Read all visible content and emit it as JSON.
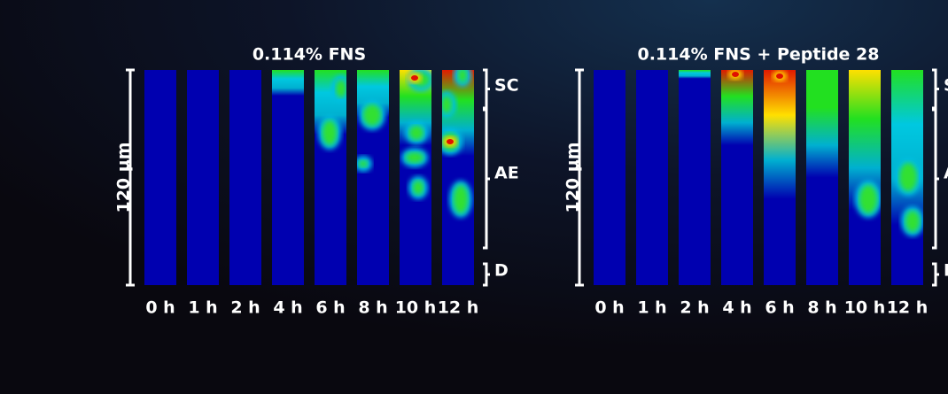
{
  "panels": [
    {
      "title": "0.114% FNS",
      "scale_label": "120 µm",
      "times": [
        "0 h",
        "1 h",
        "2 h",
        "4 h",
        "6 h",
        "8 h",
        "10 h",
        "12 h"
      ],
      "layers": [
        "SC",
        "AE",
        "D"
      ]
    },
    {
      "title": "0.114% FNS + Peptide 28",
      "scale_label": "120 µm",
      "times": [
        "0 h",
        "1 h",
        "2 h",
        "4 h",
        "6 h",
        "8 h",
        "10 h",
        "12 h"
      ],
      "layers": [
        "SC",
        "AE",
        "D"
      ]
    }
  ]
}
